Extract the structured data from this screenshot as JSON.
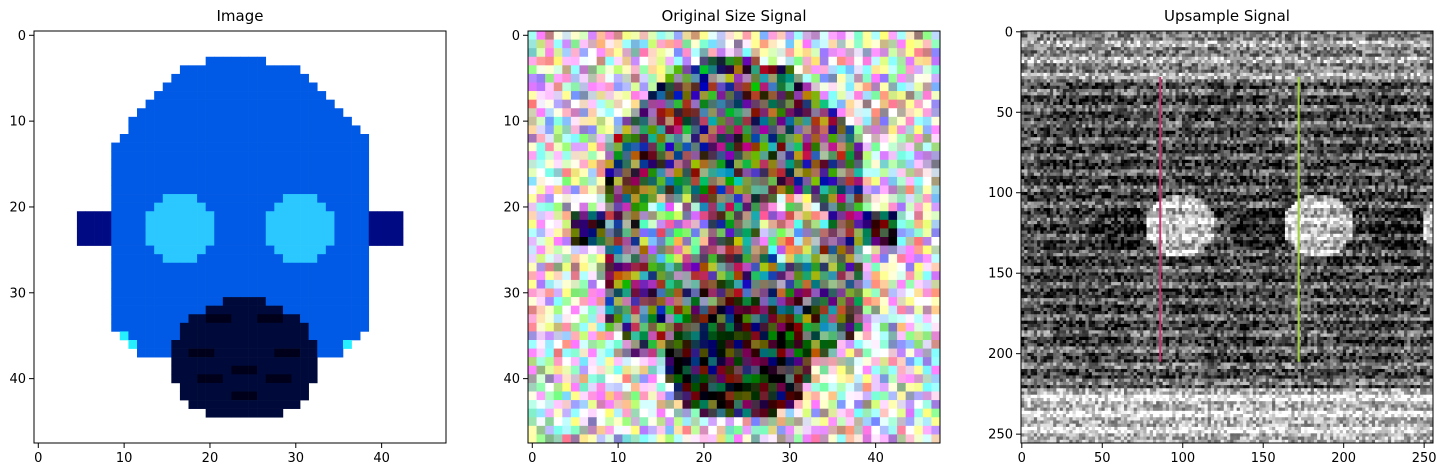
{
  "chart_data": [
    {
      "type": "heatmap",
      "title": "Image",
      "xlim": [
        -0.5,
        47.5
      ],
      "ylim": [
        47.5,
        -0.5
      ],
      "xticks": [
        0,
        10,
        20,
        30,
        40
      ],
      "yticks": [
        0,
        10,
        20,
        30,
        40
      ],
      "image_width": 48,
      "image_height": 48,
      "content": "pixel-art gas mask",
      "colors": {
        "background": "#ffffff",
        "mask": "#005ae6",
        "mask_edge": "#0018e0",
        "lens": "#2ac8ff",
        "side_strap": "#000a82",
        "filter": "#000a3a",
        "filter_holes": "#00001a",
        "cyan_edge": "#26f0ff"
      }
    },
    {
      "type": "heatmap",
      "title": "Original Size Signal",
      "xlim": [
        -0.5,
        47.5
      ],
      "ylim": [
        47.5,
        -0.5
      ],
      "xticks": [
        0,
        10,
        20,
        30,
        40
      ],
      "yticks": [
        0,
        10,
        20,
        30,
        40
      ],
      "image_width": 48,
      "image_height": 48,
      "content": "noisy RGB pixels over a faint mask silhouette"
    },
    {
      "type": "heatmap",
      "title": "Upsample Signal",
      "xlim": [
        -0.5,
        255.5
      ],
      "ylim": [
        255.5,
        -0.5
      ],
      "xticks": [
        0,
        50,
        100,
        150,
        200,
        250
      ],
      "yticks": [
        0,
        50,
        100,
        150,
        200,
        250
      ],
      "image_width": 256,
      "image_height": 256,
      "content": "grayscale textured image with three repeated mask shapes",
      "vertical_lines_x": [
        86,
        172
      ],
      "vertical_lines_y": [
        28,
        205
      ]
    }
  ]
}
